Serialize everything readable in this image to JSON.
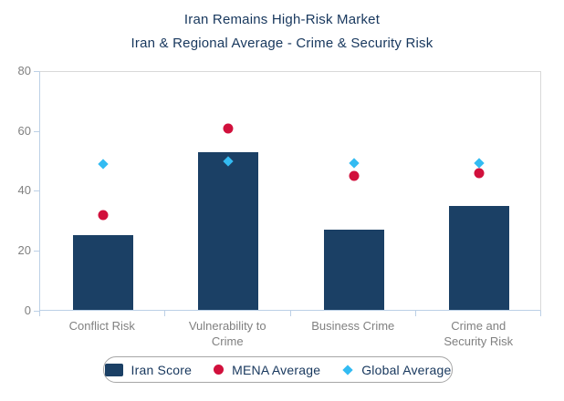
{
  "title": "Iran Remains High-Risk Market",
  "subtitle": "Iran & Regional Average - Crime & Security Risk",
  "colors": {
    "bar": "#1b4065",
    "mena": "#d1103c",
    "global": "#33bbf2",
    "title_text": "#17375d",
    "axis_label_text": "#808080",
    "axis_line": "#bcd0e6",
    "plot_border": "#d9d9d9",
    "legend_border": "#a6a6a6"
  },
  "chart_data": {
    "type": "bar",
    "title": "Iran Remains High-Risk Market",
    "subtitle": "Iran & Regional Average - Crime & Security Risk",
    "categories": [
      "Conflict Risk",
      "Vulnerability to Crime",
      "Business Crime",
      "Crime and Security Risk"
    ],
    "series": [
      {
        "name": "Iran Score",
        "type": "bar",
        "marker": "square",
        "color": "#1b4065",
        "values": [
          25,
          53,
          27,
          35
        ]
      },
      {
        "name": "MENA Average",
        "type": "scatter",
        "marker": "circle",
        "color": "#d1103c",
        "values": [
          32,
          61,
          45,
          46
        ]
      },
      {
        "name": "Global Average",
        "type": "scatter",
        "marker": "diamond",
        "color": "#33bbf2",
        "values": [
          49,
          50,
          49.5,
          49.5
        ]
      }
    ],
    "ylim": [
      0,
      80
    ],
    "yticks": [
      0,
      20,
      40,
      60,
      80
    ],
    "grid": false,
    "legend_position": "bottom"
  }
}
